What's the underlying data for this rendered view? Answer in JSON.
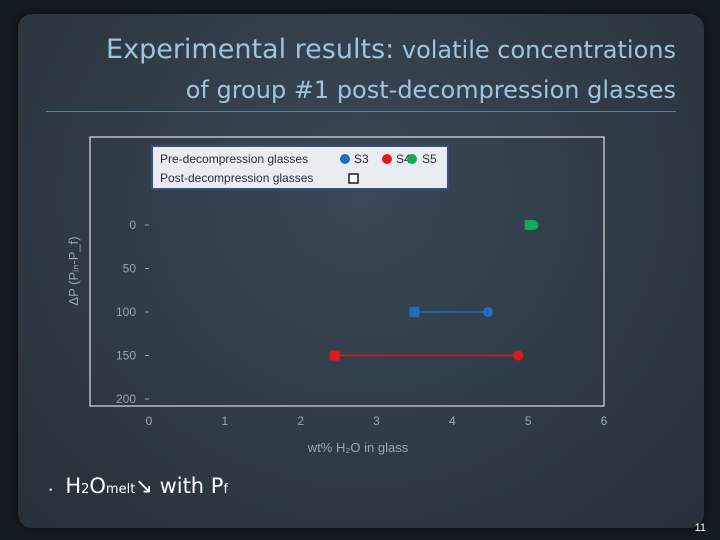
{
  "slide": {
    "title_lead": "Experimental results:",
    "title_rest": " volatile concentrations",
    "title_line2": "of group #1 post-decompression glasses",
    "bullet_text": {
      "h": "H",
      "two": "2",
      "o": "O",
      "melt": "melt",
      "arrow": " ↘ with P",
      "f": "f"
    },
    "page_number": "11"
  },
  "colors": {
    "S3": "#1f6fbe",
    "S4": "#e01a1a",
    "S5": "#14a85a",
    "axis_text": "#9aa8b4",
    "frame": "#ffffff"
  },
  "chart_data": {
    "type": "scatter",
    "xlabel": "wt% H₂O in glass",
    "ylabel": "ΔP (Pᵢₙ-P_f)",
    "xlim": [
      0,
      6
    ],
    "ylim": [
      0,
      200
    ],
    "y_inverted": true,
    "x_ticks": [
      "0",
      "1",
      "2",
      "3",
      "4",
      "5",
      "6"
    ],
    "y_ticks": [
      "0",
      "50",
      "100",
      "150",
      "200"
    ],
    "legend": {
      "placement": "top",
      "pre_label": "Pre-decompression glasses",
      "post_label": "Post-decompression glasses",
      "series_labels": [
        "S3",
        "S4",
        "S5"
      ]
    },
    "series": [
      {
        "name": "S3",
        "color": "#1f6fbe",
        "pre": {
          "x": 4.47,
          "y": 100
        },
        "post": {
          "x": 3.5,
          "y": 100
        }
      },
      {
        "name": "S4",
        "color": "#e01a1a",
        "pre": {
          "x": 4.87,
          "y": 150
        },
        "post": {
          "x": 2.45,
          "y": 150
        }
      },
      {
        "name": "S5",
        "color": "#14a85a",
        "pre": {
          "x": 5.07,
          "y": 0
        },
        "post": {
          "x": 5.02,
          "y": 0
        }
      }
    ]
  }
}
